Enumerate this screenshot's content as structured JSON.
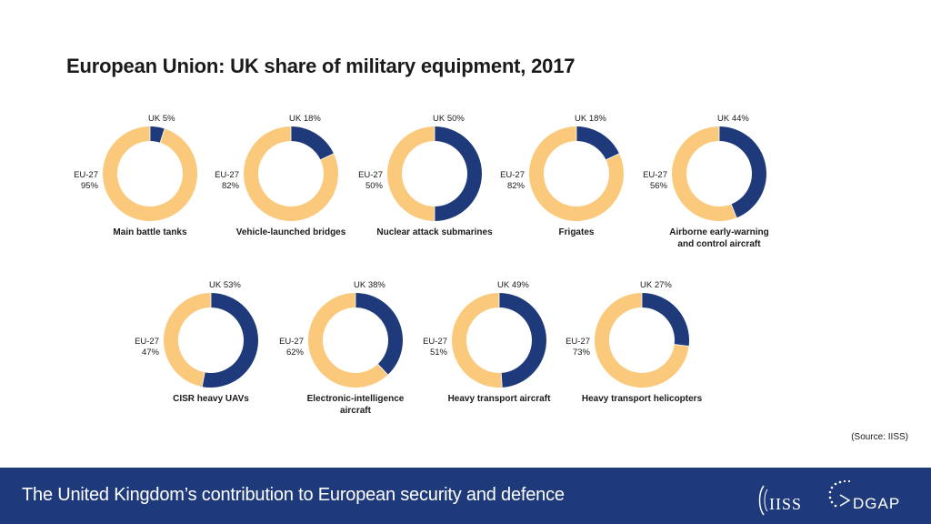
{
  "title": "European Union: UK share of military equipment, 2017",
  "source": "(Source: IISS)",
  "footer": {
    "text": "The United Kingdom’s contribution to European security and defence",
    "logo_left": "IISS",
    "logo_right": "DGAP"
  },
  "colors": {
    "uk": "#1f3a7a",
    "eu": "#fbc97b",
    "footer_bg": "#1f3a7a"
  },
  "chart_data": [
    {
      "type": "pie",
      "title": "Main battle tanks",
      "labels": [
        "UK",
        "EU-27"
      ],
      "values": [
        5,
        95
      ],
      "uk_label": "UK 5%",
      "eu_label": [
        "EU-27",
        "95%"
      ]
    },
    {
      "type": "pie",
      "title": "Vehicle-launched bridges",
      "labels": [
        "UK",
        "EU-27"
      ],
      "values": [
        18,
        82
      ],
      "uk_label": "UK 18%",
      "eu_label": [
        "EU-27",
        "82%"
      ]
    },
    {
      "type": "pie",
      "title": "Nuclear attack submarines",
      "labels": [
        "UK",
        "EU-27"
      ],
      "values": [
        50,
        50
      ],
      "uk_label": "UK 50%",
      "eu_label": [
        "EU-27",
        "50%"
      ]
    },
    {
      "type": "pie",
      "title": "Frigates",
      "labels": [
        "UK",
        "EU-27"
      ],
      "values": [
        18,
        82
      ],
      "uk_label": "UK 18%",
      "eu_label": [
        "EU-27",
        "82%"
      ]
    },
    {
      "type": "pie",
      "title": "Airborne early-warning\nand control aircraft",
      "labels": [
        "UK",
        "EU-27"
      ],
      "values": [
        44,
        56
      ],
      "uk_label": "UK 44%",
      "eu_label": [
        "EU-27",
        "56%"
      ]
    },
    {
      "type": "pie",
      "title": "CISR heavy UAVs",
      "labels": [
        "UK",
        "EU-27"
      ],
      "values": [
        53,
        47
      ],
      "uk_label": "UK 53%",
      "eu_label": [
        "EU-27",
        "47%"
      ]
    },
    {
      "type": "pie",
      "title": "Electronic-intelligence\naircraft",
      "labels": [
        "UK",
        "EU-27"
      ],
      "values": [
        38,
        62
      ],
      "uk_label": "UK 38%",
      "eu_label": [
        "EU-27",
        "62%"
      ]
    },
    {
      "type": "pie",
      "title": "Heavy transport aircraft",
      "labels": [
        "UK",
        "EU-27"
      ],
      "values": [
        49,
        51
      ],
      "uk_label": "UK 49%",
      "eu_label": [
        "EU-27",
        "51%"
      ]
    },
    {
      "type": "pie",
      "title": "Heavy transport helicopters",
      "labels": [
        "UK",
        "EU-27"
      ],
      "values": [
        27,
        73
      ],
      "uk_label": "UK 27%",
      "eu_label": [
        "EU-27",
        "73%"
      ]
    }
  ]
}
